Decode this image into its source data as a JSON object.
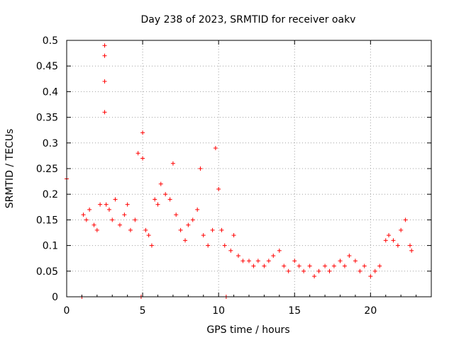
{
  "chart_data": {
    "type": "scatter",
    "title": "Day 238 of 2023, SRMTID for receiver oakv",
    "xlabel": "GPS time / hours",
    "ylabel": "SRMTID / TECUs",
    "xlim": [
      0,
      24
    ],
    "ylim": [
      0,
      0.5
    ],
    "x_ticks": [
      0,
      5,
      10,
      15,
      20
    ],
    "x_tick_labels": [
      "0",
      "5",
      "10",
      "15",
      "20"
    ],
    "y_ticks": [
      0,
      0.05,
      0.1,
      0.15,
      0.2,
      0.25,
      0.3,
      0.35,
      0.4,
      0.45,
      0.5
    ],
    "y_tick_labels": [
      "0",
      "0.05",
      "0.1",
      "0.15",
      "0.2",
      "0.25",
      "0.3",
      "0.35",
      "0.4",
      "0.45",
      "0.5"
    ],
    "grid": true,
    "marker": "+",
    "color": "#ff0000",
    "series": [
      {
        "name": "SRMTID",
        "x": [
          0.0,
          1.0,
          1.1,
          1.3,
          1.5,
          1.8,
          2.0,
          2.2,
          2.5,
          2.5,
          2.5,
          2.5,
          2.6,
          2.8,
          3.0,
          3.2,
          3.5,
          3.8,
          4.0,
          4.2,
          4.5,
          4.7,
          4.9,
          5.0,
          5.0,
          5.2,
          5.4,
          5.6,
          5.8,
          6.0,
          6.2,
          6.5,
          6.8,
          7.0,
          7.2,
          7.5,
          7.8,
          8.0,
          8.3,
          8.6,
          8.8,
          9.0,
          9.3,
          9.6,
          9.8,
          10.0,
          10.2,
          10.4,
          10.5,
          10.8,
          11.0,
          11.3,
          11.6,
          12.0,
          12.3,
          12.6,
          13.0,
          13.3,
          13.6,
          14.0,
          14.3,
          14.6,
          15.0,
          15.3,
          15.6,
          16.0,
          16.3,
          16.6,
          17.0,
          17.3,
          17.6,
          18.0,
          18.3,
          18.6,
          19.0,
          19.3,
          19.6,
          20.0,
          20.3,
          20.6,
          21.0,
          21.2,
          21.5,
          21.8,
          22.0,
          22.3,
          22.6,
          22.7
        ],
        "values": [
          0.23,
          0.0,
          0.16,
          0.15,
          0.17,
          0.14,
          0.13,
          0.18,
          0.49,
          0.47,
          0.42,
          0.36,
          0.18,
          0.17,
          0.15,
          0.19,
          0.14,
          0.16,
          0.18,
          0.13,
          0.15,
          0.28,
          0.0,
          0.32,
          0.27,
          0.13,
          0.12,
          0.1,
          0.19,
          0.18,
          0.22,
          0.2,
          0.19,
          0.26,
          0.16,
          0.13,
          0.11,
          0.14,
          0.15,
          0.17,
          0.25,
          0.12,
          0.1,
          0.13,
          0.29,
          0.21,
          0.13,
          0.1,
          0.0,
          0.09,
          0.12,
          0.08,
          0.07,
          0.07,
          0.06,
          0.07,
          0.06,
          0.07,
          0.08,
          0.09,
          0.06,
          0.05,
          0.07,
          0.06,
          0.05,
          0.06,
          0.04,
          0.05,
          0.06,
          0.05,
          0.06,
          0.07,
          0.06,
          0.08,
          0.07,
          0.05,
          0.06,
          0.04,
          0.05,
          0.06,
          0.11,
          0.12,
          0.11,
          0.1,
          0.13,
          0.15,
          0.1,
          0.09
        ]
      }
    ]
  }
}
